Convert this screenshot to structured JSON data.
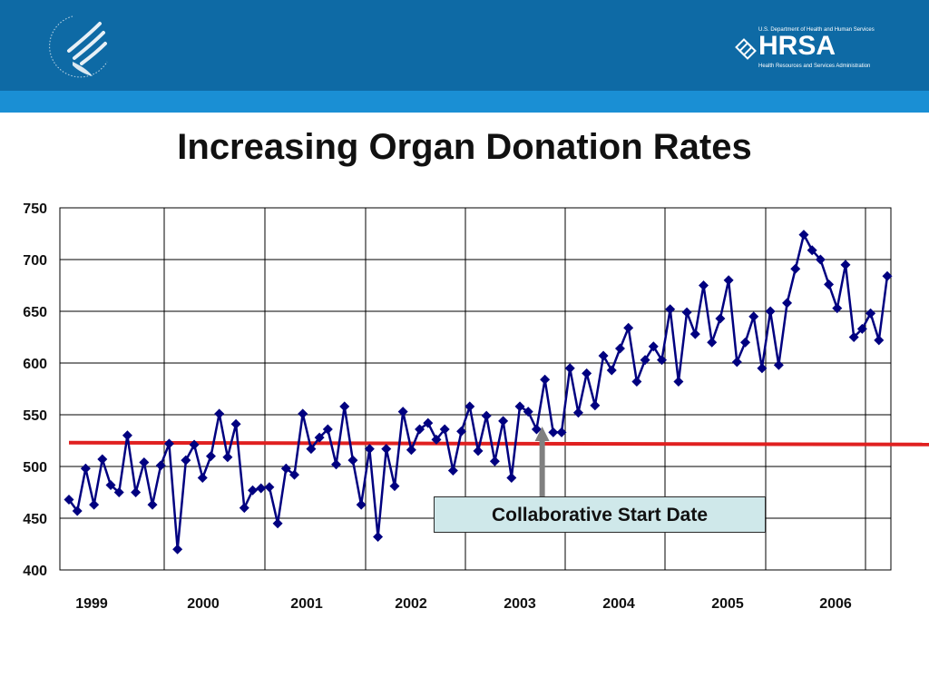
{
  "header": {
    "hrsa_department": "U.S. Department of Health and Human Services",
    "hrsa_name": "HRSA",
    "hrsa_full_name": "Health Resources and Services Administration"
  },
  "colors": {
    "header_bar": "#0e6aa5",
    "sub_bar": "#1a8fd4",
    "series": "#000080",
    "baseline": "#e02020",
    "callout_bg": "#cfe8ea",
    "arrow": "#808080"
  },
  "chart_data": {
    "type": "line",
    "title": "Increasing Organ Donation Rates",
    "xlabel": "",
    "ylabel": "",
    "ylim": [
      400,
      750
    ],
    "yticks": [
      400,
      450,
      500,
      550,
      600,
      650,
      700,
      750
    ],
    "year_labels": [
      "1999",
      "2000",
      "2001",
      "2002",
      "2003",
      "2004",
      "2005",
      "2006"
    ],
    "x_index_range": [
      0,
      98
    ],
    "grid": true,
    "marker": "diamond",
    "baseline_value": 523,
    "annotation": {
      "text": "Collaborative Start Date",
      "x_index": 57
    },
    "series": [
      {
        "values": [
          468,
          457,
          498,
          463,
          507,
          482,
          475,
          530,
          475,
          504,
          463,
          501,
          522,
          420,
          506,
          521,
          489,
          510,
          551,
          509,
          541,
          460,
          477,
          479,
          480,
          445,
          498,
          492,
          551,
          517,
          528,
          536,
          502,
          558,
          506,
          463,
          517,
          432,
          517,
          481,
          553,
          516,
          536,
          542,
          526,
          536,
          496,
          534,
          558,
          515,
          549,
          505,
          544,
          489,
          558,
          553,
          536,
          584,
          533,
          533,
          595,
          552,
          590,
          559,
          607,
          593,
          614,
          634,
          582,
          603,
          616,
          603,
          652,
          582,
          649,
          628,
          675,
          620,
          643,
          680,
          601,
          620,
          645,
          595,
          650,
          598,
          658,
          691,
          724,
          709,
          700,
          676,
          653,
          695,
          625,
          633,
          648,
          622,
          684
        ]
      }
    ]
  }
}
